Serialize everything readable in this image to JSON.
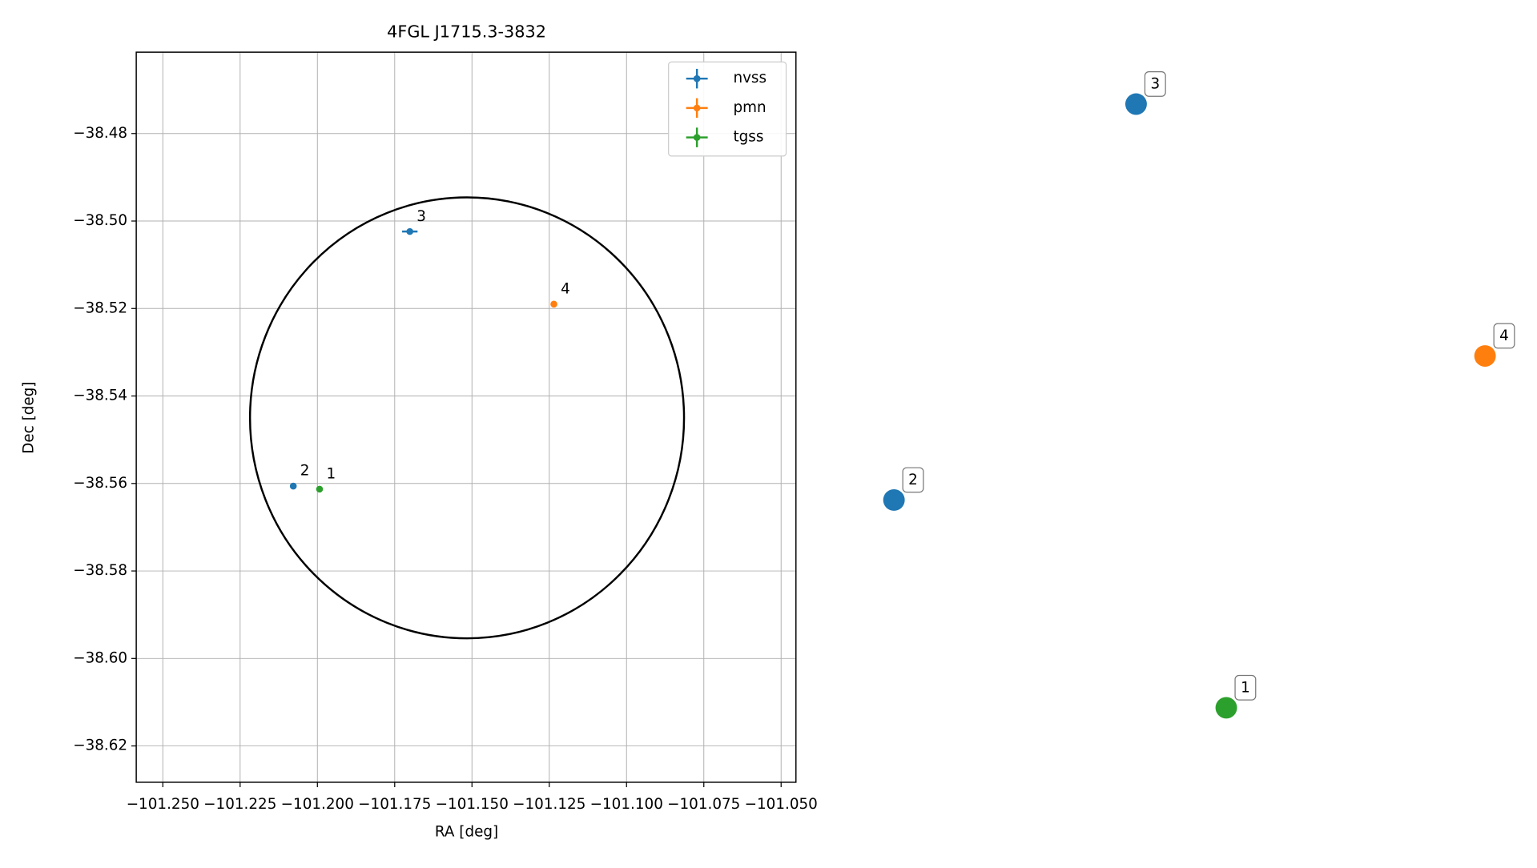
{
  "chart_data": [
    {
      "type": "scatter",
      "title": "4FGL J1715.3-3832",
      "x_label": "RA [deg]",
      "y_label": "Dec [deg]",
      "xlim": [
        -101.2586,
        -101.0452
      ],
      "ylim": [
        -38.6283,
        -38.4614
      ],
      "xticks": [
        {
          "value": -101.25,
          "label": "−101.250"
        },
        {
          "value": -101.225,
          "label": "−101.225"
        },
        {
          "value": -101.2,
          "label": "−101.200"
        },
        {
          "value": -101.175,
          "label": "−101.175"
        },
        {
          "value": -101.15,
          "label": "−101.150"
        },
        {
          "value": -101.125,
          "label": "−101.125"
        },
        {
          "value": -101.1,
          "label": "−101.100"
        },
        {
          "value": -101.075,
          "label": "−101.075"
        },
        {
          "value": -101.05,
          "label": "−101.050"
        }
      ],
      "yticks": [
        {
          "value": -38.48,
          "label": "−38.48"
        },
        {
          "value": -38.5,
          "label": "−38.50"
        },
        {
          "value": -38.52,
          "label": "−38.52"
        },
        {
          "value": -38.54,
          "label": "−38.54"
        },
        {
          "value": -38.56,
          "label": "−38.56"
        },
        {
          "value": -38.58,
          "label": "−38.58"
        },
        {
          "value": -38.6,
          "label": "−38.60"
        },
        {
          "value": -38.62,
          "label": "−38.62"
        }
      ],
      "grid": true,
      "legend": "upper right",
      "ellipse": {
        "x": -101.1516,
        "y": -38.545,
        "rx": 0.0702,
        "ry": 0.0504,
        "color": "#000000"
      },
      "series": [
        {
          "name": "nvss",
          "color": "#1f77b4",
          "x": [
            -101.1701,
            -101.2078
          ],
          "values": [
            -38.5024,
            -38.5606
          ],
          "xerr": [
            0.0025,
            0.0003
          ],
          "labels": [
            "3",
            "2"
          ]
        },
        {
          "name": "pmn",
          "color": "#ff7f0e",
          "x": [
            -101.1235
          ],
          "values": [
            -38.519
          ],
          "xerr": [
            0.0003
          ],
          "labels": [
            "4"
          ]
        },
        {
          "name": "tgss",
          "color": "#2ca02c",
          "x": [
            -101.1993
          ],
          "values": [
            -38.5613
          ],
          "xerr": [
            0.0003
          ],
          "labels": [
            "1"
          ]
        }
      ]
    },
    {
      "type": "markers",
      "points": [
        {
          "label": "3",
          "color": "#1f77b4"
        },
        {
          "label": "4",
          "color": "#ff7f0e"
        },
        {
          "label": "2",
          "color": "#1f77b4"
        },
        {
          "label": "1",
          "color": "#2ca02c"
        }
      ]
    }
  ]
}
